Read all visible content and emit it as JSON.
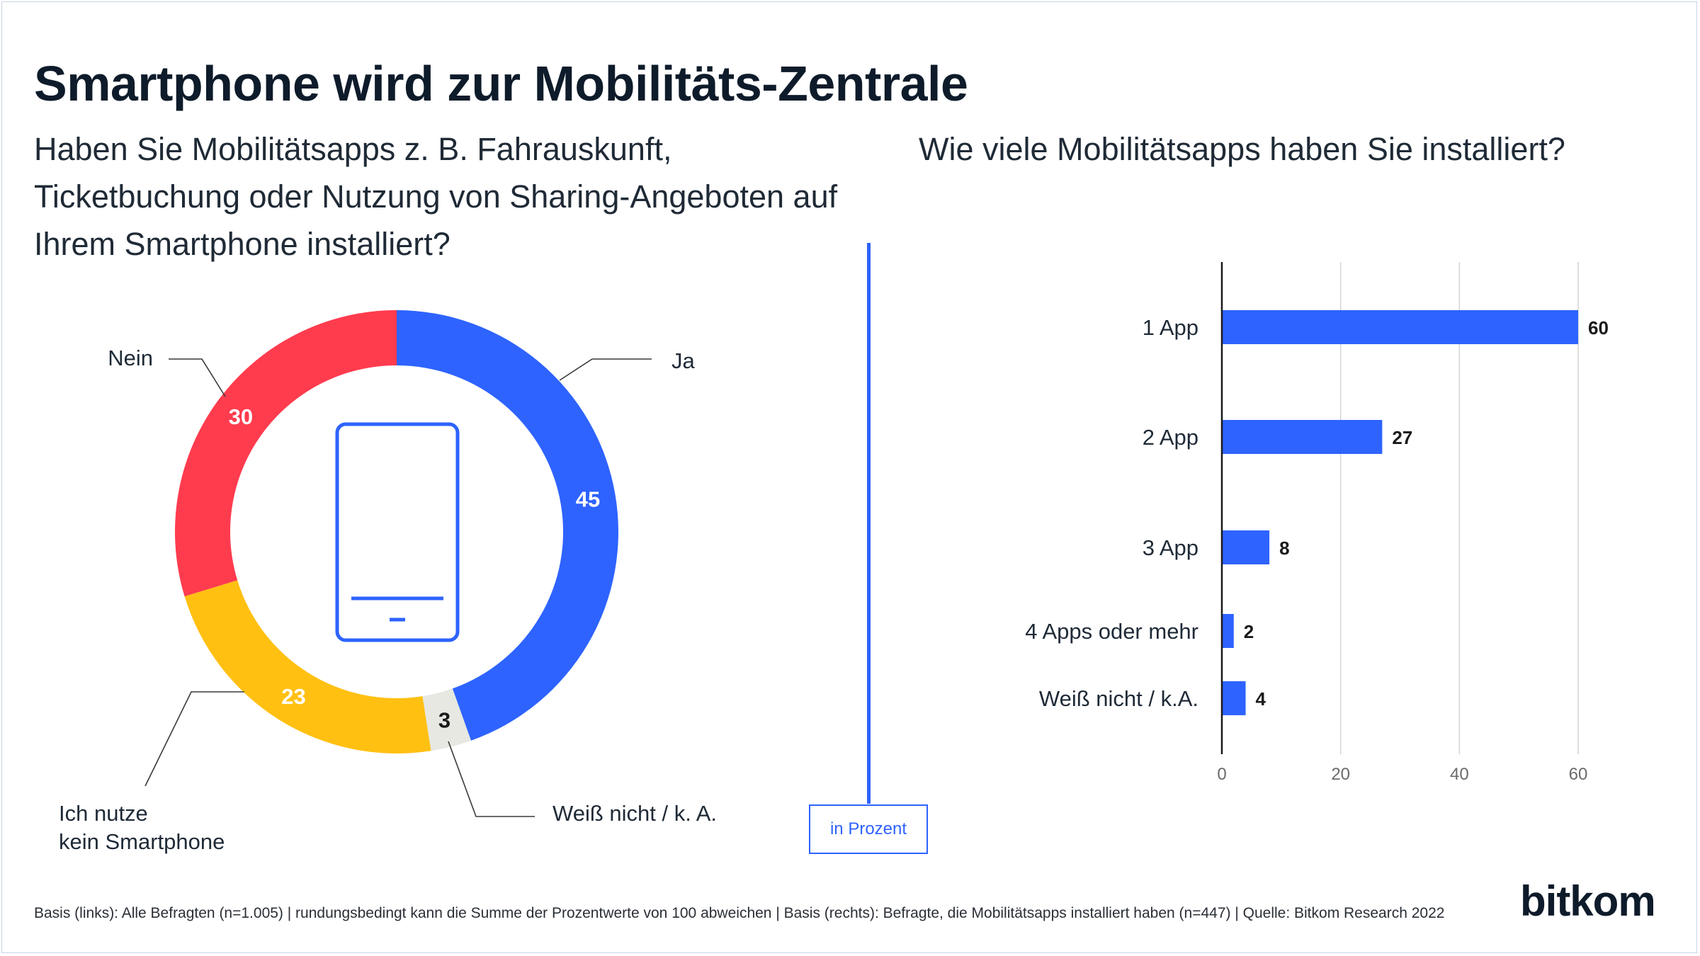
{
  "title": "Smartphone wird zur Mobilitäts-Zentrale",
  "left_question": "Haben Sie Mobilitätsapps z. B. Fahrauskunft, Ticketbuchung oder Nutzung von Sharing-Angeboten auf Ihrem Smartphone installiert?",
  "right_question": "Wie viele Mobilitätsapps haben Sie installiert?",
  "unit_label": "in Prozent",
  "footnote": "Basis (links): Alle Befragten (n=1.005) | rundungsbedingt kann die Summe der Prozentwerte von 100 abweichen | Basis (rechts): Befragte, die Mobilitätsapps installiert haben (n=447) | Quelle: Bitkom Research 2022",
  "logo": "bitkom",
  "icons": {
    "center": "smartphone-icon"
  },
  "chart_data": [
    {
      "type": "pie",
      "variant": "donut",
      "categories": [
        "Ja",
        "Weiß nicht / k. A.",
        "Ich nutze kein Smartphone",
        "Nein"
      ],
      "values": [
        45,
        3,
        23,
        30
      ],
      "colors": [
        "#2e63ff",
        "#e6e8e1",
        "#ffc012",
        "#ff3b4e"
      ],
      "label_colors": [
        "#ffffff",
        "#1a1a1a",
        "#ffffff",
        "#ffffff"
      ]
    },
    {
      "type": "bar",
      "orientation": "horizontal",
      "categories": [
        "1 App",
        "2 App",
        "3 App",
        "4 Apps oder mehr",
        "Weiß nicht / k.A."
      ],
      "values": [
        60,
        27,
        8,
        2,
        4
      ],
      "xlim": [
        0,
        60
      ],
      "xticks": [
        0,
        20,
        40,
        60
      ],
      "grid": true,
      "color": "#2e63ff"
    }
  ]
}
